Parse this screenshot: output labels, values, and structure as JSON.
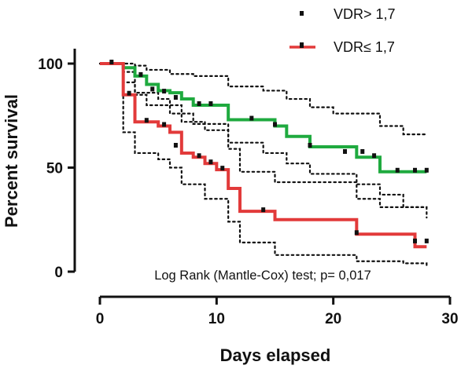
{
  "chart_data": {
    "type": "line",
    "subtype": "kaplan-meier step plot with 95% confidence bands",
    "xlabel": "Days elapsed",
    "ylabel": "Percent survival",
    "xlim": [
      0,
      30
    ],
    "ylim": [
      0,
      100
    ],
    "xticks": [
      "0",
      "10",
      "20",
      "30"
    ],
    "yticks": [
      "0",
      "50",
      "100"
    ],
    "grid": false,
    "legend_position": "top-right",
    "annotation": "Log Rank (Mantle-Cox) test; p= 0,017",
    "series": [
      {
        "name": "VDR> 1,7",
        "legend_label": "VDR> 1,7",
        "color": "#1faa3f",
        "x": [
          0,
          2,
          3,
          4,
          5,
          6,
          7,
          8,
          11,
          15,
          16,
          18,
          22,
          24,
          28
        ],
        "y": [
          100,
          98,
          94,
          90,
          87,
          86,
          83,
          80,
          73,
          70,
          65,
          60,
          55,
          48,
          48
        ],
        "censored": [
          [
            1,
            100
          ],
          [
            3.5,
            94
          ],
          [
            4.5,
            87
          ],
          [
            5.5,
            86
          ],
          [
            6.5,
            83
          ],
          [
            8.5,
            80
          ],
          [
            9.5,
            80
          ],
          [
            13,
            73
          ],
          [
            15,
            70
          ],
          [
            18,
            60
          ],
          [
            21,
            57
          ],
          [
            22.5,
            57
          ],
          [
            23.5,
            55
          ],
          [
            25.5,
            48
          ],
          [
            27,
            48
          ],
          [
            28,
            48
          ]
        ],
        "ci_upper": [
          [
            0,
            100
          ],
          [
            1.5,
            100
          ],
          [
            3,
            99
          ],
          [
            4,
            97
          ],
          [
            6,
            95
          ],
          [
            8,
            94
          ],
          [
            11,
            89
          ],
          [
            14,
            87
          ],
          [
            16,
            83
          ],
          [
            18,
            79
          ],
          [
            20,
            76
          ],
          [
            24,
            70
          ],
          [
            26,
            66
          ],
          [
            28,
            66
          ]
        ],
        "ci_lower": [
          [
            0,
            100
          ],
          [
            2,
            91
          ],
          [
            3,
            85
          ],
          [
            4,
            80
          ],
          [
            6,
            76
          ],
          [
            8,
            71
          ],
          [
            11,
            62
          ],
          [
            14,
            57
          ],
          [
            16,
            52
          ],
          [
            18,
            47
          ],
          [
            22,
            42
          ],
          [
            24,
            37
          ],
          [
            26,
            31
          ],
          [
            28,
            31
          ]
        ]
      },
      {
        "name": "VDR≤ 1,7",
        "legend_label": "VDR≤ 1,7",
        "color": "#e23a3a",
        "x": [
          0,
          2,
          3,
          5,
          6,
          7,
          8,
          9,
          10,
          11,
          12,
          15,
          22,
          27,
          28
        ],
        "y": [
          100,
          85,
          72,
          70,
          67,
          57,
          55,
          52,
          49,
          40,
          29,
          25,
          18,
          12,
          12
        ],
        "censored": [
          [
            2.5,
            85
          ],
          [
            4,
            72
          ],
          [
            5.5,
            70
          ],
          [
            6.5,
            60
          ],
          [
            8.5,
            55
          ],
          [
            9.5,
            52
          ],
          [
            10.5,
            49
          ],
          [
            14,
            29
          ],
          [
            22,
            18
          ],
          [
            27,
            14
          ],
          [
            28,
            14
          ]
        ],
        "ci_upper": [
          [
            0,
            100
          ],
          [
            2,
            96
          ],
          [
            3,
            86
          ],
          [
            5,
            83
          ],
          [
            6,
            80
          ],
          [
            7,
            72
          ],
          [
            9,
            68
          ],
          [
            11,
            59
          ],
          [
            12,
            48
          ],
          [
            15,
            43
          ],
          [
            22,
            35
          ],
          [
            24,
            31
          ],
          [
            28,
            26
          ]
        ],
        "ci_lower": [
          [
            0,
            100
          ],
          [
            2,
            67
          ],
          [
            3,
            57
          ],
          [
            5,
            54
          ],
          [
            6,
            50
          ],
          [
            7,
            42
          ],
          [
            9,
            35
          ],
          [
            11,
            24
          ],
          [
            12,
            14
          ],
          [
            15,
            8
          ],
          [
            22,
            5
          ],
          [
            26,
            4
          ],
          [
            28,
            2
          ]
        ]
      }
    ]
  }
}
